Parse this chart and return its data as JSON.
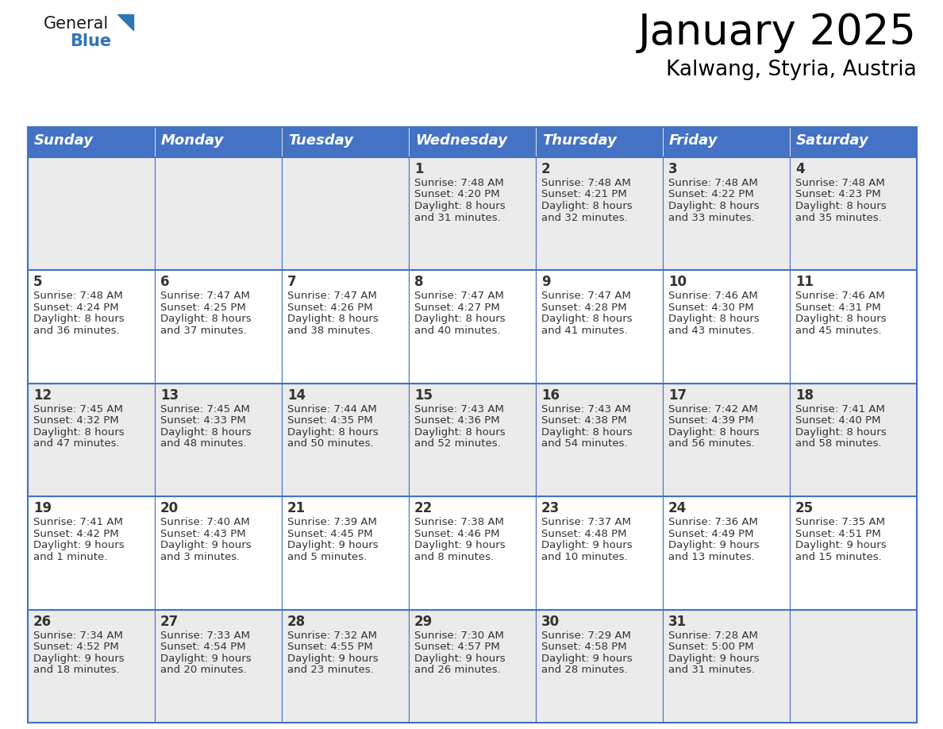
{
  "title": "January 2025",
  "subtitle": "Kalwang, Styria, Austria",
  "days_of_week": [
    "Sunday",
    "Monday",
    "Tuesday",
    "Wednesday",
    "Thursday",
    "Friday",
    "Saturday"
  ],
  "header_bg": "#4472C4",
  "header_text": "#FFFFFF",
  "even_row_bg": "#EBEBEB",
  "odd_row_bg": "#FFFFFF",
  "day_num_bg_even": "#EBEBEB",
  "day_num_bg_odd": "#FFFFFF",
  "grid_line_color": "#4472C4",
  "text_color": "#333333",
  "logo_general_color": "#1a1a1a",
  "logo_blue_color": "#2E75B6",
  "calendar_data": [
    [
      null,
      null,
      null,
      {
        "day": 1,
        "sunrise": "7:48 AM",
        "sunset": "4:20 PM",
        "daylight": "8 hours",
        "daylight2": "and 31 minutes."
      },
      {
        "day": 2,
        "sunrise": "7:48 AM",
        "sunset": "4:21 PM",
        "daylight": "8 hours",
        "daylight2": "and 32 minutes."
      },
      {
        "day": 3,
        "sunrise": "7:48 AM",
        "sunset": "4:22 PM",
        "daylight": "8 hours",
        "daylight2": "and 33 minutes."
      },
      {
        "day": 4,
        "sunrise": "7:48 AM",
        "sunset": "4:23 PM",
        "daylight": "8 hours",
        "daylight2": "and 35 minutes."
      }
    ],
    [
      {
        "day": 5,
        "sunrise": "7:48 AM",
        "sunset": "4:24 PM",
        "daylight": "8 hours",
        "daylight2": "and 36 minutes."
      },
      {
        "day": 6,
        "sunrise": "7:47 AM",
        "sunset": "4:25 PM",
        "daylight": "8 hours",
        "daylight2": "and 37 minutes."
      },
      {
        "day": 7,
        "sunrise": "7:47 AM",
        "sunset": "4:26 PM",
        "daylight": "8 hours",
        "daylight2": "and 38 minutes."
      },
      {
        "day": 8,
        "sunrise": "7:47 AM",
        "sunset": "4:27 PM",
        "daylight": "8 hours",
        "daylight2": "and 40 minutes."
      },
      {
        "day": 9,
        "sunrise": "7:47 AM",
        "sunset": "4:28 PM",
        "daylight": "8 hours",
        "daylight2": "and 41 minutes."
      },
      {
        "day": 10,
        "sunrise": "7:46 AM",
        "sunset": "4:30 PM",
        "daylight": "8 hours",
        "daylight2": "and 43 minutes."
      },
      {
        "day": 11,
        "sunrise": "7:46 AM",
        "sunset": "4:31 PM",
        "daylight": "8 hours",
        "daylight2": "and 45 minutes."
      }
    ],
    [
      {
        "day": 12,
        "sunrise": "7:45 AM",
        "sunset": "4:32 PM",
        "daylight": "8 hours",
        "daylight2": "and 47 minutes."
      },
      {
        "day": 13,
        "sunrise": "7:45 AM",
        "sunset": "4:33 PM",
        "daylight": "8 hours",
        "daylight2": "and 48 minutes."
      },
      {
        "day": 14,
        "sunrise": "7:44 AM",
        "sunset": "4:35 PM",
        "daylight": "8 hours",
        "daylight2": "and 50 minutes."
      },
      {
        "day": 15,
        "sunrise": "7:43 AM",
        "sunset": "4:36 PM",
        "daylight": "8 hours",
        "daylight2": "and 52 minutes."
      },
      {
        "day": 16,
        "sunrise": "7:43 AM",
        "sunset": "4:38 PM",
        "daylight": "8 hours",
        "daylight2": "and 54 minutes."
      },
      {
        "day": 17,
        "sunrise": "7:42 AM",
        "sunset": "4:39 PM",
        "daylight": "8 hours",
        "daylight2": "and 56 minutes."
      },
      {
        "day": 18,
        "sunrise": "7:41 AM",
        "sunset": "4:40 PM",
        "daylight": "8 hours",
        "daylight2": "and 58 minutes."
      }
    ],
    [
      {
        "day": 19,
        "sunrise": "7:41 AM",
        "sunset": "4:42 PM",
        "daylight": "9 hours",
        "daylight2": "and 1 minute."
      },
      {
        "day": 20,
        "sunrise": "7:40 AM",
        "sunset": "4:43 PM",
        "daylight": "9 hours",
        "daylight2": "and 3 minutes."
      },
      {
        "day": 21,
        "sunrise": "7:39 AM",
        "sunset": "4:45 PM",
        "daylight": "9 hours",
        "daylight2": "and 5 minutes."
      },
      {
        "day": 22,
        "sunrise": "7:38 AM",
        "sunset": "4:46 PM",
        "daylight": "9 hours",
        "daylight2": "and 8 minutes."
      },
      {
        "day": 23,
        "sunrise": "7:37 AM",
        "sunset": "4:48 PM",
        "daylight": "9 hours",
        "daylight2": "and 10 minutes."
      },
      {
        "day": 24,
        "sunrise": "7:36 AM",
        "sunset": "4:49 PM",
        "daylight": "9 hours",
        "daylight2": "and 13 minutes."
      },
      {
        "day": 25,
        "sunrise": "7:35 AM",
        "sunset": "4:51 PM",
        "daylight": "9 hours",
        "daylight2": "and 15 minutes."
      }
    ],
    [
      {
        "day": 26,
        "sunrise": "7:34 AM",
        "sunset": "4:52 PM",
        "daylight": "9 hours",
        "daylight2": "and 18 minutes."
      },
      {
        "day": 27,
        "sunrise": "7:33 AM",
        "sunset": "4:54 PM",
        "daylight": "9 hours",
        "daylight2": "and 20 minutes."
      },
      {
        "day": 28,
        "sunrise": "7:32 AM",
        "sunset": "4:55 PM",
        "daylight": "9 hours",
        "daylight2": "and 23 minutes."
      },
      {
        "day": 29,
        "sunrise": "7:30 AM",
        "sunset": "4:57 PM",
        "daylight": "9 hours",
        "daylight2": "and 26 minutes."
      },
      {
        "day": 30,
        "sunrise": "7:29 AM",
        "sunset": "4:58 PM",
        "daylight": "9 hours",
        "daylight2": "and 28 minutes."
      },
      {
        "day": 31,
        "sunrise": "7:28 AM",
        "sunset": "5:00 PM",
        "daylight": "9 hours",
        "daylight2": "and 31 minutes."
      },
      null
    ]
  ]
}
